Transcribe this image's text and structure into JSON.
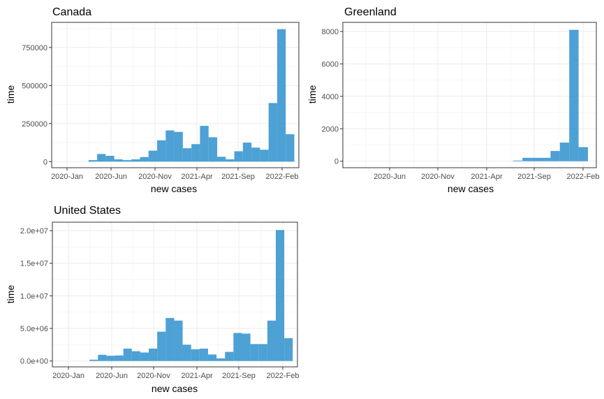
{
  "colors": {
    "bar": "#3a97cf",
    "grid_major": "#ebebeb",
    "grid_minor": "#f5f5f5",
    "border": "#333333",
    "tick_text": "#4d4d4d"
  },
  "chart_data": [
    {
      "type": "bar",
      "title": "Canada",
      "xlabel": "new cases",
      "ylabel": "time",
      "x_ticks": [
        "2020-Jan",
        "2020-Jun",
        "2020-Nov",
        "2021-Apr",
        "2021-Sep",
        "2022-Feb"
      ],
      "y_ticks": [
        "0",
        "250000",
        "500000",
        "750000"
      ],
      "y_tick_values": [
        0,
        250000,
        500000,
        750000
      ],
      "ylim": [
        -40000,
        915000
      ],
      "values": [
        0,
        10000,
        50000,
        38000,
        15000,
        10000,
        15000,
        30000,
        72000,
        140000,
        205000,
        195000,
        88000,
        115000,
        235000,
        160000,
        32000,
        15000,
        68000,
        125000,
        92000,
        78000,
        385000,
        870000,
        180000
      ],
      "grid": true
    },
    {
      "type": "bar",
      "title": "Greenland",
      "xlabel": "new cases",
      "ylabel": "time",
      "x_ticks": [
        "2020-Jun",
        "2020-Nov",
        "2021-Apr",
        "2021-Sep",
        "2022-Feb"
      ],
      "y_ticks": [
        "0",
        "2000",
        "4000",
        "6000",
        "8000"
      ],
      "y_tick_values": [
        0,
        2000,
        4000,
        6000,
        8000
      ],
      "ylim": [
        -400,
        8560
      ],
      "values": [
        0,
        0,
        0,
        0,
        0,
        0,
        0,
        0,
        0,
        0,
        0,
        0,
        0,
        0,
        0,
        0,
        0,
        40,
        210,
        210,
        210,
        630,
        1150,
        8100,
        870
      ],
      "grid": true
    },
    {
      "type": "bar",
      "title": "United States",
      "xlabel": "new cases",
      "ylabel": "time",
      "x_ticks": [
        "2020-Jan",
        "2020-Jun",
        "2020-Nov",
        "2021-Apr",
        "2021-Sep",
        "2022-Feb"
      ],
      "y_ticks": [
        "0.0e+00",
        "5.0e+06",
        "1.0e+07",
        "1.5e+07",
        "2.0e+07"
      ],
      "y_tick_values": [
        0,
        5000000,
        10000000,
        15000000,
        20000000
      ],
      "ylim": [
        -900000,
        21300000
      ],
      "values": [
        0,
        200000,
        950000,
        800000,
        850000,
        1900000,
        1500000,
        1300000,
        1900000,
        4500000,
        6600000,
        6200000,
        2500000,
        1800000,
        1900000,
        1000000,
        400000,
        1400000,
        4300000,
        4200000,
        2600000,
        2600000,
        6200000,
        20100000,
        3500000
      ],
      "grid": true
    }
  ]
}
